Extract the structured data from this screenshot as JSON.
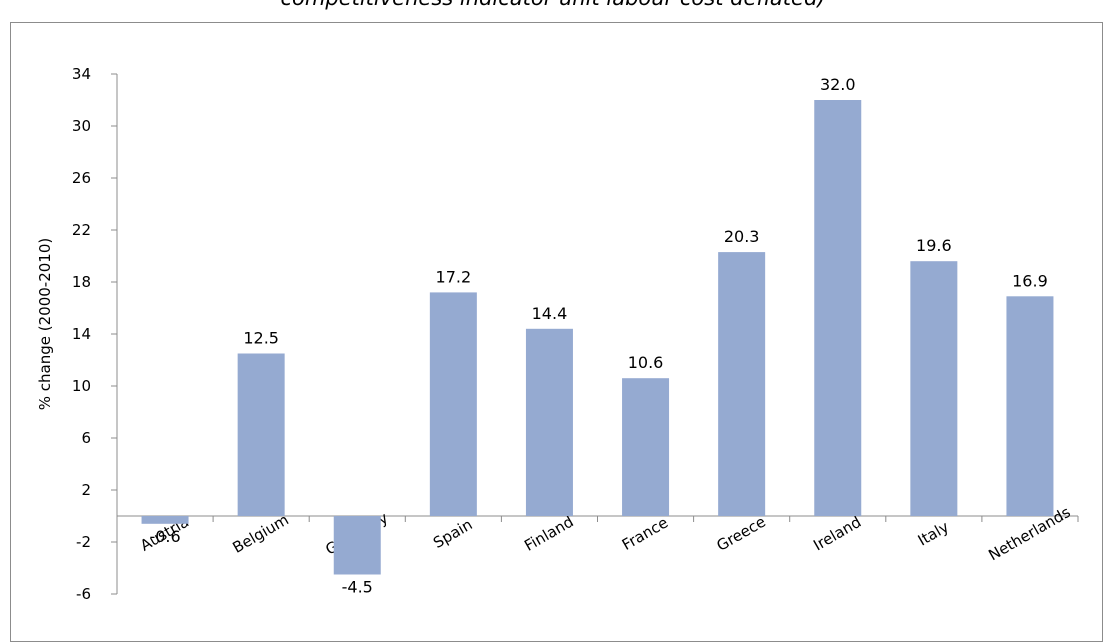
{
  "caption": "competitiveness indicator unit labour cost deflated)",
  "chart_data": {
    "type": "bar",
    "title": "competitiveness indicator unit labour cost deflated)",
    "ylabel": "% change (2000-2010)",
    "xlabel": "",
    "categories": [
      "Austria",
      "Belgium",
      "Germany",
      "Spain",
      "Finland",
      "France",
      "Greece",
      "Ireland",
      "Italy",
      "Netherlands"
    ],
    "values": [
      -0.6,
      12.5,
      -4.5,
      17.2,
      14.4,
      10.6,
      20.3,
      32.0,
      19.6,
      16.9
    ],
    "data_labels": [
      "-0.6",
      "12.5",
      "-4.5",
      "17.2",
      "14.4",
      "10.6",
      "20.3",
      "32.0",
      "19.6",
      "16.9"
    ],
    "ylim": [
      -6,
      34
    ],
    "yticks": [
      -6,
      -2,
      2,
      6,
      10,
      14,
      18,
      22,
      26,
      30,
      34
    ],
    "bar_color": "#95aad1",
    "grid": false,
    "legend": "none"
  }
}
